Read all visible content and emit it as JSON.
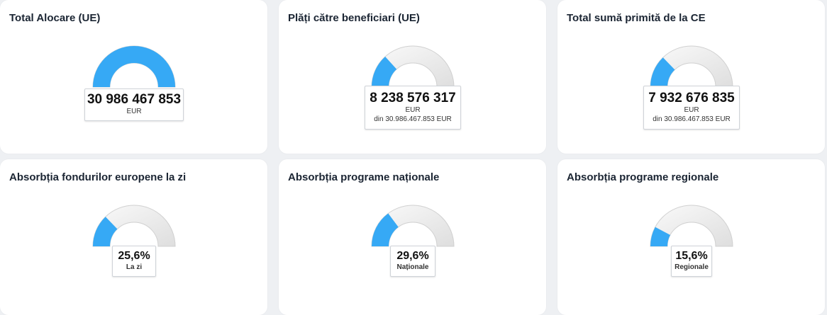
{
  "colors": {
    "fill": "#36a9f5",
    "track": "#eeeeee",
    "track_border": "#d0d0d0"
  },
  "cards": [
    {
      "title": "Total Alocare (UE)",
      "value": "30 986 467 853",
      "unit": "EUR",
      "sub": "",
      "fraction": 1.0
    },
    {
      "title": "Plăți către beneficiari (UE)",
      "value": "8 238 576 317",
      "unit": "EUR",
      "sub": "din 30.986.467.853 EUR",
      "fraction": 0.266
    },
    {
      "title": "Total sumă primită de la CE",
      "value": "7 932 676 835",
      "unit": "EUR",
      "sub": "din 30.986.467.853 EUR",
      "fraction": 0.256
    },
    {
      "title": "Absorbția fondurilor europene la zi",
      "value": "25,6%",
      "unit": "",
      "sub": "La zi",
      "fraction": 0.256
    },
    {
      "title": "Absorbția programe naționale",
      "value": "29,6%",
      "unit": "",
      "sub": "Naționale",
      "fraction": 0.296
    },
    {
      "title": "Absorbția programe regionale",
      "value": "15,6%",
      "unit": "",
      "sub": "Regionale",
      "fraction": 0.156
    }
  ]
}
